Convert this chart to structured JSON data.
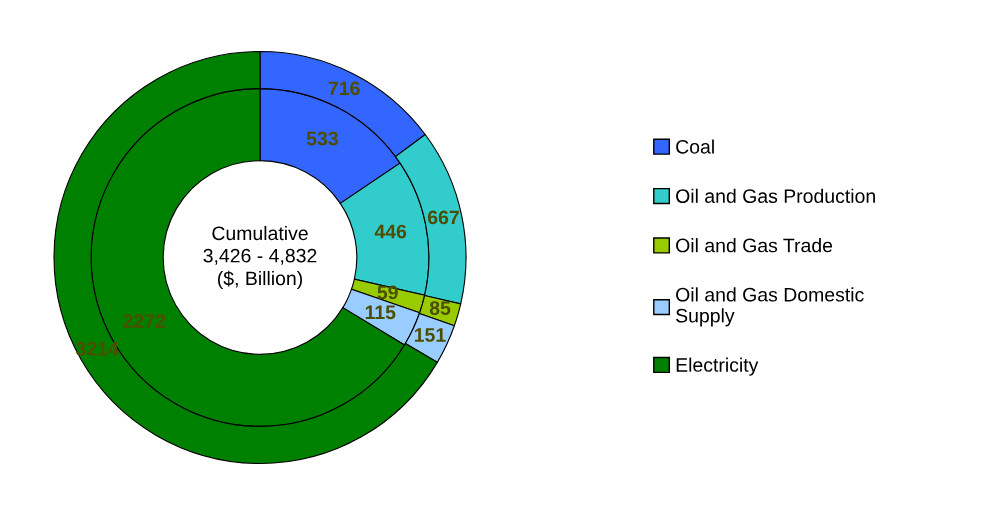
{
  "chart_data": {
    "type": "donut",
    "categories": [
      "Coal",
      "Oil and Gas Production",
      "Oil and Gas Trade",
      "Oil and Gas Domestic Supply",
      "Electricity"
    ],
    "colors": [
      "#3366ff",
      "#33cccc",
      "#99cc00",
      "#99ccff",
      "#008000"
    ],
    "series": [
      {
        "values": [
          533,
          446,
          59,
          115,
          2272
        ]
      },
      {
        "values": [
          716,
          667,
          85,
          151,
          3214
        ]
      }
    ],
    "data_labels": true,
    "legend": "right",
    "annotations": [
      "Cumulative\n3,426 - 4,832\n($, Billion)"
    ]
  }
}
